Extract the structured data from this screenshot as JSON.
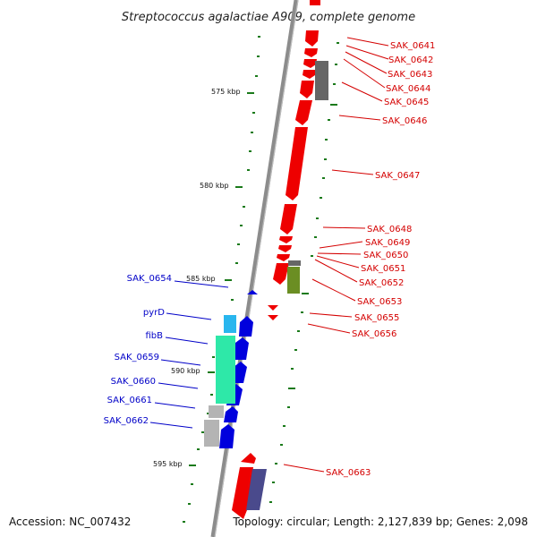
{
  "title": "Streptococcus agalactiae A909, complete genome",
  "accession": "Accession: NC_007432",
  "summary": "Topology: circular; Length: 2,127,839 bp; Genes: 2,098",
  "scale_labels": [
    "575 kbp",
    "580 kbp",
    "585 kbp",
    "590 kbp",
    "595 kbp"
  ],
  "genes_right": [
    "SAK_0641",
    "SAK_0642",
    "SAK_0643",
    "SAK_0644",
    "SAK_0645",
    "SAK_0646",
    "SAK_0647",
    "SAK_0648",
    "SAK_0649",
    "SAK_0650",
    "SAK_0651",
    "SAK_0652",
    "SAK_0653",
    "SAK_0655",
    "SAK_0656",
    "SAK_0663"
  ],
  "genes_left": [
    "SAK_0654",
    "pyrD",
    "fibB",
    "SAK_0659",
    "SAK_0660",
    "SAK_0661",
    "SAK_0662"
  ],
  "colors": {
    "forward_gene": "#0000dd",
    "reverse_gene": "#ee0000",
    "label_red": "#d40000",
    "label_blue": "#0000c8",
    "backbone": "#8c8c8c",
    "tick": "#1a7a1a",
    "cyan": "#29b6ee",
    "mint": "#2ee8a8",
    "grey": "#b4b4b4",
    "dark_grey": "#666666",
    "olive": "#6b8e23",
    "slate": "#4a4a8c"
  }
}
